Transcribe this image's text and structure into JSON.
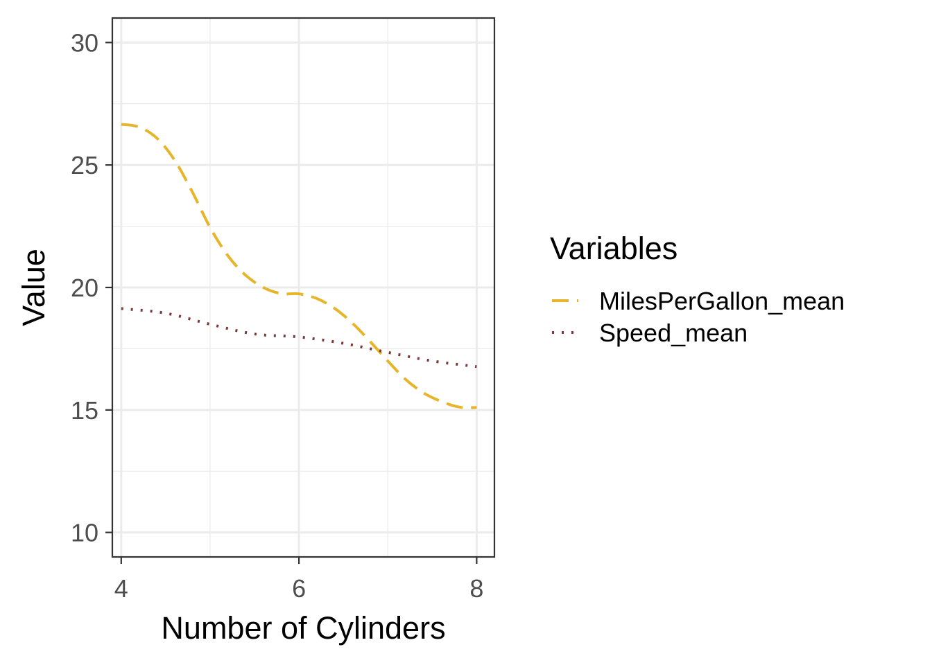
{
  "chart_data": {
    "type": "line",
    "title": "",
    "xlabel": "Number of Cylinders",
    "ylabel": "Value",
    "xlim": [
      3.9,
      8.2
    ],
    "ylim": [
      9.0,
      31.0
    ],
    "x_ticks": [
      4,
      6,
      8
    ],
    "y_ticks": [
      10,
      15,
      20,
      25,
      30
    ],
    "grid": true,
    "legend": {
      "title": "Variables",
      "placement": "right"
    },
    "series": [
      {
        "name": "MilesPerGallon_mean",
        "color": "#E6B52B",
        "dash": "dashed",
        "x": [
          4.0,
          4.2,
          4.4,
          4.6,
          4.8,
          5.0,
          5.2,
          5.4,
          5.6,
          5.8,
          6.0,
          6.2,
          6.4,
          6.6,
          6.8,
          7.0,
          7.2,
          7.4,
          7.6,
          7.8,
          8.0
        ],
        "y": [
          26.66,
          26.55,
          26.1,
          25.2,
          23.9,
          22.45,
          21.3,
          20.5,
          20.0,
          19.75,
          19.74,
          19.55,
          19.15,
          18.55,
          17.8,
          17.0,
          16.25,
          15.7,
          15.35,
          15.12,
          15.1
        ]
      },
      {
        "name": "Speed_mean",
        "color": "#7B3A3A",
        "dash": "dotted",
        "x": [
          4.0,
          4.5,
          5.0,
          5.5,
          6.0,
          6.5,
          7.0,
          7.5,
          8.0
        ],
        "y": [
          19.14,
          18.95,
          18.5,
          18.1,
          17.98,
          17.72,
          17.35,
          17.0,
          16.77
        ]
      }
    ]
  }
}
